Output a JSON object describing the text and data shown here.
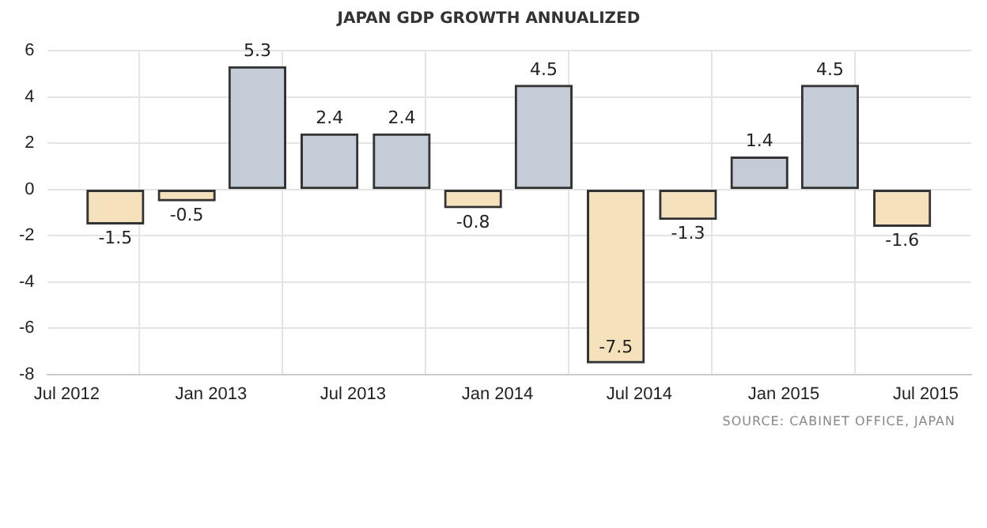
{
  "chart_data": {
    "type": "bar",
    "title": "JAPAN GDP GROWTH ANNUALIZED",
    "x": [
      "2012-09",
      "2012-12",
      "2013-03",
      "2013-06",
      "2013-09",
      "2013-12",
      "2014-03",
      "2014-06",
      "2014-09",
      "2014-12",
      "2015-03",
      "2015-06"
    ],
    "values": [
      -1.5,
      -0.5,
      5.3,
      2.4,
      2.4,
      -0.8,
      4.5,
      -7.5,
      -1.3,
      1.4,
      4.5,
      -1.6
    ],
    "colors": [
      "#f5e2bd",
      "#f5e2bd",
      "#c4ccd7",
      "#c4ccd7",
      "#c4ccd7",
      "#f5e2bd",
      "#c4ccd7",
      "#f5e2bd",
      "#f5e2bd",
      "#c4ccd7",
      "#c4ccd7",
      "#f5e2bd"
    ],
    "xlim": [
      "2012-06-06",
      "2015-08-28"
    ],
    "xticks": [
      {
        "value": "2012-07",
        "label": "Jul 2012"
      },
      {
        "value": "2013-01",
        "label": "Jan 2013"
      },
      {
        "value": "2013-07",
        "label": "Jul 2013"
      },
      {
        "value": "2014-01",
        "label": "Jan 2014"
      },
      {
        "value": "2014-07",
        "label": "Jul 2014"
      },
      {
        "value": "2015-01",
        "label": "Jan 2015"
      },
      {
        "value": "2015-07",
        "label": "Jul 2015"
      }
    ],
    "ylim": [
      -8,
      6
    ],
    "yticks": [
      -8,
      -6,
      -4,
      -2,
      0,
      2,
      4,
      6
    ],
    "grid": true,
    "legend": false,
    "data_labels": true,
    "annotations": [
      "SOURCE: CABINET OFFICE, JAPAN"
    ]
  }
}
